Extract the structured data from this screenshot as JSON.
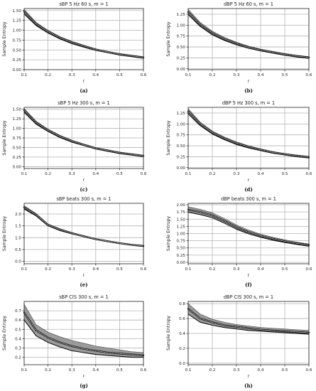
{
  "colors": {
    "band": "#8a8a8a",
    "line": "#111111",
    "dots": "#ffffff",
    "grid": "#b4b4b4"
  },
  "chart_data": [
    {
      "type": "area",
      "panel": "a",
      "caption": "(a)",
      "title": "sBP 5 Hz 60 s, m = 1",
      "xlabel": "r",
      "ylabel": "Sample Entropy",
      "xlim": [
        0.1,
        0.6
      ],
      "ylim": [
        0.0,
        1.55
      ],
      "xticks": [
        0.1,
        0.2,
        0.3,
        0.4,
        0.5,
        0.6
      ],
      "yticks": [
        0.0,
        0.25,
        0.5,
        0.75,
        1.0,
        1.25,
        1.5
      ],
      "ytick_labels": [
        "0.00",
        "0.25",
        "0.50",
        "0.75",
        "1.00",
        "1.25",
        "1.50"
      ],
      "grid": true,
      "x": [
        0.1,
        0.15,
        0.2,
        0.25,
        0.3,
        0.35,
        0.4,
        0.45,
        0.5,
        0.55,
        0.6
      ],
      "series": [
        {
          "role": "upper",
          "values": [
            1.53,
            1.2,
            1.0,
            0.84,
            0.72,
            0.62,
            0.53,
            0.46,
            0.41,
            0.37,
            0.33
          ]
        },
        {
          "role": "mean",
          "values": [
            1.47,
            1.16,
            0.96,
            0.81,
            0.69,
            0.6,
            0.51,
            0.45,
            0.39,
            0.35,
            0.31
          ]
        },
        {
          "role": "lower",
          "values": [
            1.41,
            1.12,
            0.93,
            0.78,
            0.66,
            0.57,
            0.49,
            0.43,
            0.37,
            0.33,
            0.29
          ]
        }
      ]
    },
    {
      "type": "area",
      "panel": "b",
      "caption": "(b)",
      "title": "dBP 5 Hz 60 s, m = 1",
      "xlabel": "r",
      "ylabel": "Sample Entropy",
      "xlim": [
        0.1,
        0.6
      ],
      "ylim": [
        -0.02,
        1.38
      ],
      "xticks": [
        0.1,
        0.2,
        0.3,
        0.4,
        0.5,
        0.6
      ],
      "yticks": [
        0.0,
        0.25,
        0.5,
        0.75,
        1.0,
        1.25
      ],
      "ytick_labels": [
        "0.00",
        "0.25",
        "0.50",
        "0.75",
        "1.00",
        "1.25"
      ],
      "grid": true,
      "x": [
        0.1,
        0.15,
        0.2,
        0.25,
        0.3,
        0.35,
        0.4,
        0.45,
        0.5,
        0.55,
        0.6
      ],
      "series": [
        {
          "role": "upper",
          "values": [
            1.36,
            1.06,
            0.86,
            0.72,
            0.61,
            0.52,
            0.45,
            0.4,
            0.35,
            0.31,
            0.28
          ]
        },
        {
          "role": "mean",
          "values": [
            1.3,
            1.01,
            0.82,
            0.68,
            0.58,
            0.49,
            0.43,
            0.38,
            0.33,
            0.29,
            0.26
          ]
        },
        {
          "role": "lower",
          "values": [
            1.24,
            0.97,
            0.78,
            0.65,
            0.55,
            0.47,
            0.41,
            0.36,
            0.31,
            0.27,
            0.24
          ]
        }
      ]
    },
    {
      "type": "area",
      "panel": "c",
      "caption": "(c)",
      "title": "sBP 5 Hz 300 s, m = 1",
      "xlabel": "r",
      "ylabel": "Sample Entropy",
      "xlim": [
        0.1,
        0.6
      ],
      "ylim": [
        -0.05,
        1.55
      ],
      "xticks": [
        0.1,
        0.2,
        0.3,
        0.4,
        0.5,
        0.6
      ],
      "yticks": [
        0.0,
        0.25,
        0.5,
        0.75,
        1.0,
        1.25,
        1.5
      ],
      "ytick_labels": [
        "0.00",
        "0.25",
        "0.50",
        "0.75",
        "1.00",
        "1.25",
        "1.50"
      ],
      "grid": true,
      "x": [
        0.1,
        0.15,
        0.2,
        0.25,
        0.3,
        0.35,
        0.4,
        0.45,
        0.5,
        0.55,
        0.6
      ],
      "series": [
        {
          "role": "upper",
          "values": [
            1.52,
            1.19,
            0.98,
            0.82,
            0.69,
            0.59,
            0.5,
            0.44,
            0.38,
            0.34,
            0.3
          ]
        },
        {
          "role": "mean",
          "values": [
            1.47,
            1.15,
            0.95,
            0.79,
            0.67,
            0.57,
            0.48,
            0.42,
            0.36,
            0.32,
            0.28
          ]
        },
        {
          "role": "lower",
          "values": [
            1.42,
            1.11,
            0.92,
            0.76,
            0.64,
            0.55,
            0.46,
            0.4,
            0.34,
            0.3,
            0.26
          ]
        }
      ]
    },
    {
      "type": "area",
      "panel": "d",
      "caption": "(d)",
      "title": "dBP 5 Hz 300 s, m = 1",
      "xlabel": "r",
      "ylabel": "Sample Entropy",
      "xlim": [
        0.1,
        0.6
      ],
      "ylim": [
        -0.02,
        1.38
      ],
      "xticks": [
        0.1,
        0.2,
        0.3,
        0.4,
        0.5,
        0.6
      ],
      "yticks": [
        0.0,
        0.25,
        0.5,
        0.75,
        1.0,
        1.25
      ],
      "ytick_labels": [
        "0.00",
        "0.25",
        "0.50",
        "0.75",
        "1.00",
        "1.25"
      ],
      "grid": true,
      "x": [
        0.1,
        0.15,
        0.2,
        0.25,
        0.3,
        0.35,
        0.4,
        0.45,
        0.5,
        0.55,
        0.6
      ],
      "series": [
        {
          "role": "upper",
          "values": [
            1.35,
            1.04,
            0.84,
            0.7,
            0.59,
            0.5,
            0.43,
            0.37,
            0.32,
            0.29,
            0.26
          ]
        },
        {
          "role": "mean",
          "values": [
            1.29,
            1.0,
            0.8,
            0.67,
            0.56,
            0.48,
            0.41,
            0.35,
            0.31,
            0.27,
            0.24
          ]
        },
        {
          "role": "lower",
          "values": [
            1.23,
            0.96,
            0.77,
            0.64,
            0.53,
            0.45,
            0.39,
            0.33,
            0.29,
            0.25,
            0.22
          ]
        }
      ]
    },
    {
      "type": "area",
      "panel": "e",
      "caption": "(e)",
      "title": "sBP beats 300 s, m = 1",
      "xlabel": "r",
      "ylabel": "Sample Entropy",
      "xlim": [
        0.1,
        0.6
      ],
      "ylim": [
        -0.1,
        2.45
      ],
      "xticks": [
        0.1,
        0.2,
        0.3,
        0.4,
        0.5,
        0.6
      ],
      "yticks": [
        0.0,
        0.5,
        1.0,
        1.5,
        2.0
      ],
      "ytick_labels": [
        "0.0",
        "0.5",
        "1.0",
        "1.5",
        "2.0"
      ],
      "grid": true,
      "x": [
        0.1,
        0.15,
        0.2,
        0.25,
        0.3,
        0.35,
        0.4,
        0.45,
        0.5,
        0.55,
        0.6
      ],
      "series": [
        {
          "role": "upper",
          "values": [
            2.35,
            2.02,
            1.58,
            1.38,
            1.22,
            1.08,
            0.96,
            0.87,
            0.79,
            0.72,
            0.67
          ]
        },
        {
          "role": "mean",
          "values": [
            2.28,
            1.97,
            1.54,
            1.34,
            1.19,
            1.06,
            0.94,
            0.85,
            0.77,
            0.7,
            0.65
          ]
        },
        {
          "role": "lower",
          "values": [
            2.21,
            1.92,
            1.5,
            1.3,
            1.16,
            1.04,
            0.92,
            0.83,
            0.75,
            0.68,
            0.63
          ]
        }
      ]
    },
    {
      "type": "area",
      "panel": "f",
      "caption": "(f)",
      "title": "dBP beats 300 s, m = 1",
      "xlabel": "r",
      "ylabel": "Sample Entropy",
      "xlim": [
        0.1,
        0.6
      ],
      "ylim": [
        -0.05,
        2.05
      ],
      "xticks": [
        0.1,
        0.2,
        0.3,
        0.4,
        0.5,
        0.6
      ],
      "yticks": [
        0.0,
        0.25,
        0.5,
        0.75,
        1.0,
        1.25,
        1.5,
        1.75,
        2.0
      ],
      "ytick_labels": [
        "0.00",
        "0.25",
        "0.50",
        "0.75",
        "1.00",
        "1.25",
        "1.50",
        "1.75",
        "2.00"
      ],
      "grid": true,
      "x": [
        0.1,
        0.15,
        0.2,
        0.25,
        0.3,
        0.35,
        0.4,
        0.45,
        0.5,
        0.55,
        0.6
      ],
      "series": [
        {
          "role": "upper",
          "values": [
            1.93,
            1.84,
            1.72,
            1.52,
            1.3,
            1.12,
            0.98,
            0.87,
            0.78,
            0.7,
            0.64
          ]
        },
        {
          "role": "mean",
          "values": [
            1.83,
            1.75,
            1.63,
            1.44,
            1.22,
            1.05,
            0.92,
            0.82,
            0.73,
            0.66,
            0.6
          ]
        },
        {
          "role": "lower",
          "values": [
            1.74,
            1.66,
            1.55,
            1.36,
            1.15,
            0.99,
            0.87,
            0.77,
            0.69,
            0.62,
            0.56
          ]
        }
      ]
    },
    {
      "type": "area",
      "panel": "g",
      "caption": "(g)",
      "title": "sBP CIS 300 s, m = 1",
      "xlabel": "r",
      "ylabel": "Sample Entropy",
      "xlim": [
        0.1,
        0.6
      ],
      "ylim": [
        0.12,
        0.8
      ],
      "xticks": [
        0.1,
        0.2,
        0.3,
        0.4,
        0.5,
        0.6
      ],
      "yticks": [
        0.2,
        0.3,
        0.4,
        0.5,
        0.6,
        0.7
      ],
      "ytick_labels": [
        "0.2",
        "0.3",
        "0.4",
        "0.5",
        "0.6",
        "0.7"
      ],
      "grid": true,
      "x": [
        0.1,
        0.15,
        0.2,
        0.25,
        0.3,
        0.35,
        0.4,
        0.45,
        0.5,
        0.55,
        0.6
      ],
      "series": [
        {
          "role": "upper",
          "values": [
            0.77,
            0.55,
            0.47,
            0.42,
            0.38,
            0.35,
            0.32,
            0.3,
            0.28,
            0.26,
            0.25
          ]
        },
        {
          "role": "mean",
          "values": [
            0.68,
            0.49,
            0.41,
            0.36,
            0.32,
            0.29,
            0.27,
            0.25,
            0.24,
            0.23,
            0.22
          ]
        },
        {
          "role": "lower",
          "values": [
            0.6,
            0.43,
            0.36,
            0.31,
            0.27,
            0.25,
            0.23,
            0.22,
            0.21,
            0.2,
            0.2
          ]
        }
      ]
    },
    {
      "type": "area",
      "panel": "h",
      "caption": "(h)",
      "title": "dBP CIS 300 s, m = 1",
      "xlabel": "r",
      "ylabel": "Sample Entropy",
      "xlim": [
        0.1,
        0.6
      ],
      "ylim": [
        -0.02,
        0.83
      ],
      "xticks": [
        0.1,
        0.2,
        0.3,
        0.4,
        0.5,
        0.6
      ],
      "yticks": [
        0.0,
        0.2,
        0.4,
        0.6,
        0.8
      ],
      "ytick_labels": [
        "0.0",
        "0.2",
        "0.4",
        "0.6",
        "0.8"
      ],
      "grid": true,
      "x": [
        0.1,
        0.15,
        0.2,
        0.25,
        0.3,
        0.35,
        0.4,
        0.45,
        0.5,
        0.55,
        0.6
      ],
      "series": [
        {
          "role": "upper",
          "values": [
            0.8,
            0.66,
            0.59,
            0.55,
            0.52,
            0.5,
            0.48,
            0.47,
            0.46,
            0.45,
            0.44
          ]
        },
        {
          "role": "mean",
          "values": [
            0.73,
            0.6,
            0.55,
            0.51,
            0.49,
            0.47,
            0.45,
            0.44,
            0.43,
            0.42,
            0.41
          ]
        },
        {
          "role": "lower",
          "values": [
            0.66,
            0.55,
            0.51,
            0.48,
            0.46,
            0.44,
            0.43,
            0.42,
            0.41,
            0.4,
            0.39
          ]
        }
      ]
    }
  ]
}
